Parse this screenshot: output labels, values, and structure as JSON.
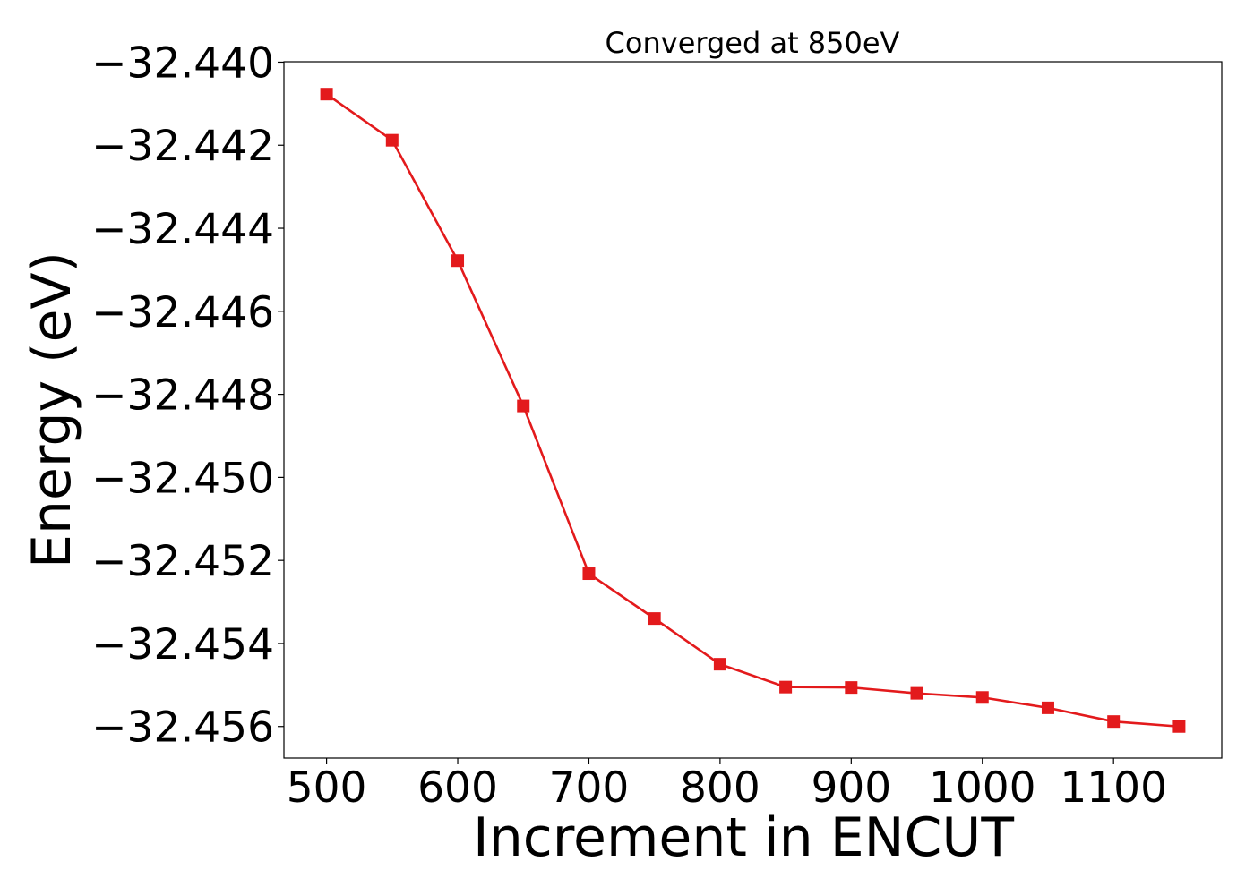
{
  "chart_data": {
    "type": "line",
    "title": "Converged at 850eV",
    "xlabel": "Increment in ENCUT",
    "ylabel": "Energy (eV)",
    "x": [
      500,
      550,
      600,
      650,
      700,
      750,
      800,
      850,
      900,
      950,
      1000,
      1050,
      1100,
      1150
    ],
    "series": [
      {
        "values": [
          -32.44077,
          -32.44188,
          -32.44478,
          -32.44828,
          -32.45232,
          -32.4534,
          -32.4545,
          -32.45505,
          -32.45506,
          -32.4552,
          -32.4553,
          -32.45555,
          -32.45588,
          -32.456
        ]
      }
    ],
    "xlim": [
      467.5,
      1182.5
    ],
    "ylim": [
      -32.45676,
      -32.43999
    ],
    "xticks": [
      500,
      600,
      700,
      800,
      900,
      1000,
      1100
    ],
    "xtick_labels": [
      "500",
      "600",
      "700",
      "800",
      "900",
      "1000",
      "1100"
    ],
    "yticks": [
      -32.44,
      -32.442,
      -32.444,
      -32.446,
      -32.448,
      -32.45,
      -32.452,
      -32.454,
      -32.456
    ],
    "ytick_labels": [
      "−32.440",
      "−32.442",
      "−32.444",
      "−32.446",
      "−32.448",
      "−32.450",
      "−32.452",
      "−32.454",
      "−32.456"
    ],
    "color": "#e31a1c",
    "marker": "square",
    "grid": false,
    "legend": false
  }
}
